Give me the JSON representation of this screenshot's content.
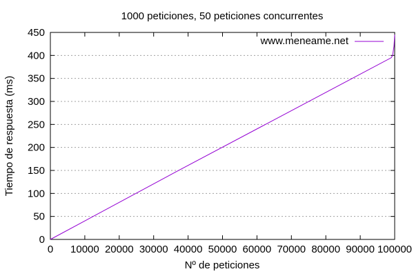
{
  "chart_data": {
    "type": "line",
    "title": "1000 peticiones, 50 peticiones concurrentes",
    "xlabel": "Nº de peticiones",
    "ylabel": "Tiempo de respuesta (ms)",
    "xlim": [
      0,
      100000
    ],
    "ylim": [
      0,
      450
    ],
    "xticks": [
      0,
      10000,
      20000,
      30000,
      40000,
      50000,
      60000,
      70000,
      80000,
      90000,
      100000
    ],
    "yticks": [
      0,
      50,
      100,
      150,
      200,
      250,
      300,
      350,
      400,
      450
    ],
    "grid": "horizontal dotted",
    "legend_position": "top-right",
    "series": [
      {
        "name": "www.meneame.net",
        "color": "#9400d3",
        "x": [
          0,
          36000,
          99000,
          99400,
          99800,
          100000
        ],
        "y": [
          0,
          145,
          395,
          400,
          420,
          445
        ]
      }
    ]
  }
}
